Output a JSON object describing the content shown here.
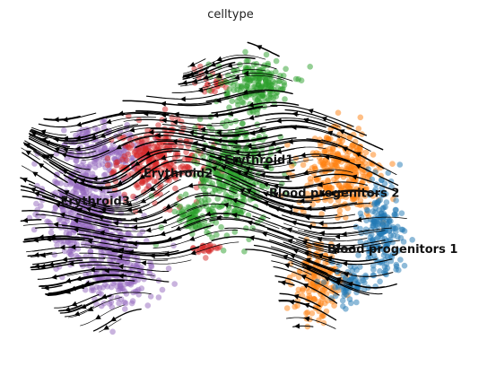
{
  "chart_data": {
    "type": "scatter",
    "title": "celltype",
    "xlabel": "",
    "ylabel": "",
    "grid": false,
    "axes": "hidden",
    "overlay": "velocity streamlines",
    "xlim": [
      0,
      100
    ],
    "ylim": [
      0,
      100
    ],
    "series": [
      {
        "name": "Erythroid3",
        "color": "#9467bd",
        "label_at": [
          11.5,
          45.5
        ],
        "regions": [
          {
            "center": [
              17,
              45
            ],
            "spread": [
              8,
              15
            ],
            "n": 420
          },
          {
            "center": [
              24,
              27
            ],
            "spread": [
              8,
              11
            ],
            "n": 260
          },
          {
            "center": [
              22,
              63
            ],
            "spread": [
              9,
              6
            ],
            "n": 150
          }
        ]
      },
      {
        "name": "Erythroid2",
        "color": "#d62728",
        "label_at": [
          30,
          54
        ],
        "regions": [
          {
            "center": [
              33,
              59
            ],
            "spread": [
              9,
              10
            ],
            "n": 280
          },
          {
            "center": [
              44,
              32
            ],
            "spread": [
              3,
              2
            ],
            "n": 25
          },
          {
            "center": [
              45,
              83
            ],
            "spread": [
              3,
              4
            ],
            "n": 25
          }
        ]
      },
      {
        "name": "Erythroid1",
        "color": "#2ca02c",
        "label_at": [
          48,
          58
        ],
        "regions": [
          {
            "center": [
              50,
              55
            ],
            "spread": [
              8,
              14
            ],
            "n": 380
          },
          {
            "center": [
              55,
              82
            ],
            "spread": [
              7,
              7
            ],
            "n": 200
          },
          {
            "center": [
              41,
              42
            ],
            "spread": [
              4,
              6
            ],
            "n": 70
          }
        ]
      },
      {
        "name": "Blood progenitors 2",
        "color": "#ff7f0e",
        "label_at": [
          58,
          48
        ],
        "regions": [
          {
            "center": [
              74,
              55
            ],
            "spread": [
              8,
              12
            ],
            "n": 320
          },
          {
            "center": [
              69,
              22
            ],
            "spread": [
              5,
              11
            ],
            "n": 160
          }
        ]
      },
      {
        "name": "Blood progenitors 1",
        "color": "#1f77b4",
        "label_at": [
          71,
          31
        ],
        "regions": [
          {
            "center": [
              83,
              38
            ],
            "spread": [
              4,
              13
            ],
            "n": 200
          },
          {
            "center": [
              76,
              22
            ],
            "spread": [
              4,
              6
            ],
            "n": 70
          }
        ]
      }
    ],
    "labels": [
      {
        "text": "Erythroid3",
        "series": "Erythroid3"
      },
      {
        "text": "Erythroid2",
        "series": "Erythroid2"
      },
      {
        "text": "Erythroid1",
        "series": "Erythroid1"
      },
      {
        "text": "Blood progenitors 2",
        "series": "Blood progenitors 2"
      },
      {
        "text": "Blood progenitors 1",
        "series": "Blood progenitors 1"
      }
    ]
  }
}
